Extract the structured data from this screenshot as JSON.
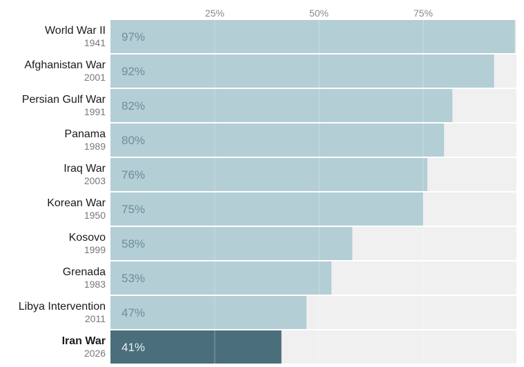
{
  "chart_data": {
    "type": "bar",
    "orientation": "horizontal",
    "title": "",
    "xlabel": "",
    "ylabel": "",
    "xlim": [
      0,
      100
    ],
    "ticks": [
      25,
      50,
      75
    ],
    "tick_labels": [
      "25%",
      "50%",
      "75%"
    ],
    "categories": [
      "World War II",
      "Afghanistan War",
      "Persian Gulf War",
      "Panama",
      "Iraq War",
      "Korean War",
      "Kosovo",
      "Grenada",
      "Libya Intervention",
      "Iran War"
    ],
    "years": [
      "1941",
      "2001",
      "1991",
      "1989",
      "2003",
      "1950",
      "1999",
      "1983",
      "2011",
      "2026"
    ],
    "values": [
      97,
      92,
      82,
      80,
      76,
      75,
      58,
      53,
      47,
      41
    ],
    "value_labels": [
      "97%",
      "92%",
      "82%",
      "80%",
      "76%",
      "75%",
      "58%",
      "53%",
      "47%",
      "41%"
    ],
    "highlight": "Iran War",
    "colors": {
      "bar": "#b3ced5",
      "highlight_bar": "#4a6e7b",
      "track": "#f0f0f0",
      "gridline": "#ffffff"
    }
  }
}
